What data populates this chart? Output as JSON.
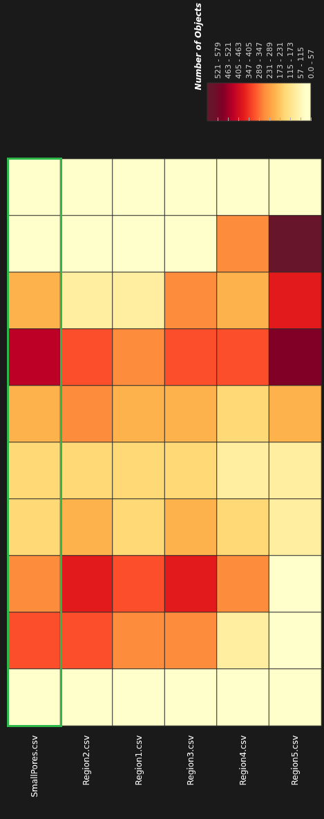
{
  "chart_data": {
    "type": "heatmap",
    "clabel": "Number of Objects",
    "categories": [
      "SmallPores.csv",
      "Region2.csv",
      "Region1.csv",
      "Region3.csv",
      "Region4.csv",
      "Region5.csv"
    ],
    "y_categories": [
      null,
      null,
      null,
      null,
      null,
      null,
      null,
      null,
      null,
      null
    ],
    "cells": [
      [
        28,
        28,
        28,
        28,
        28,
        28
      ],
      [
        28,
        28,
        28,
        28,
        260,
        550
      ],
      [
        202,
        86,
        86,
        260,
        202,
        376
      ],
      [
        434,
        318,
        260,
        318,
        318,
        492
      ],
      [
        202,
        260,
        202,
        202,
        144,
        202
      ],
      [
        144,
        144,
        144,
        144,
        86,
        86
      ],
      [
        144,
        202,
        144,
        202,
        144,
        86
      ],
      [
        260,
        376,
        318,
        376,
        260,
        28
      ],
      [
        318,
        318,
        260,
        260,
        86,
        28
      ],
      [
        28,
        28,
        28,
        28,
        28,
        28
      ]
    ],
    "clim": [
      0,
      579
    ],
    "cticks": [
      {
        "value": 0,
        "label": "0.0 - 57"
      },
      {
        "value": 57,
        "label": "57 - 115"
      },
      {
        "value": 115,
        "label": "115 - 173"
      },
      {
        "value": 173,
        "label": "173 - 231"
      },
      {
        "value": 231,
        "label": "231 - 289"
      },
      {
        "value": 289,
        "label": "289 - 347"
      },
      {
        "value": 347,
        "label": "347 - 405"
      },
      {
        "value": 405,
        "label": "405 - 463"
      },
      {
        "value": 463,
        "label": "463 - 521"
      },
      {
        "value": 521,
        "label": "521 - 579"
      }
    ]
  }
}
